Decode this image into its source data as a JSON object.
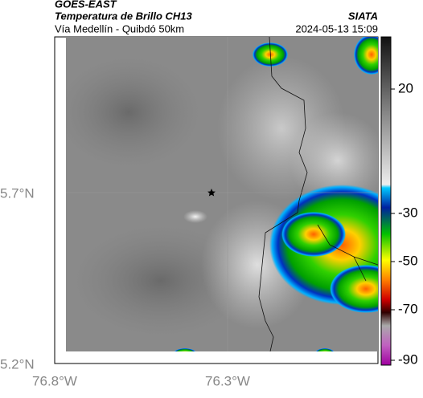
{
  "header": {
    "source": "GOES-EAST",
    "product": "Temperatura de Brillo CH13",
    "route": "Vía Medellín - Quibdó 50km",
    "agency": "SIATA",
    "timestamp": "2024-05-13 15:09"
  },
  "map": {
    "lat_labels": [
      "5.7°N",
      "5.2°N"
    ],
    "lon_labels": [
      "76.8°W",
      "76.3°W"
    ]
  },
  "colorbar": {
    "ticks": [
      20,
      -30,
      -50,
      -70,
      -90
    ]
  }
}
